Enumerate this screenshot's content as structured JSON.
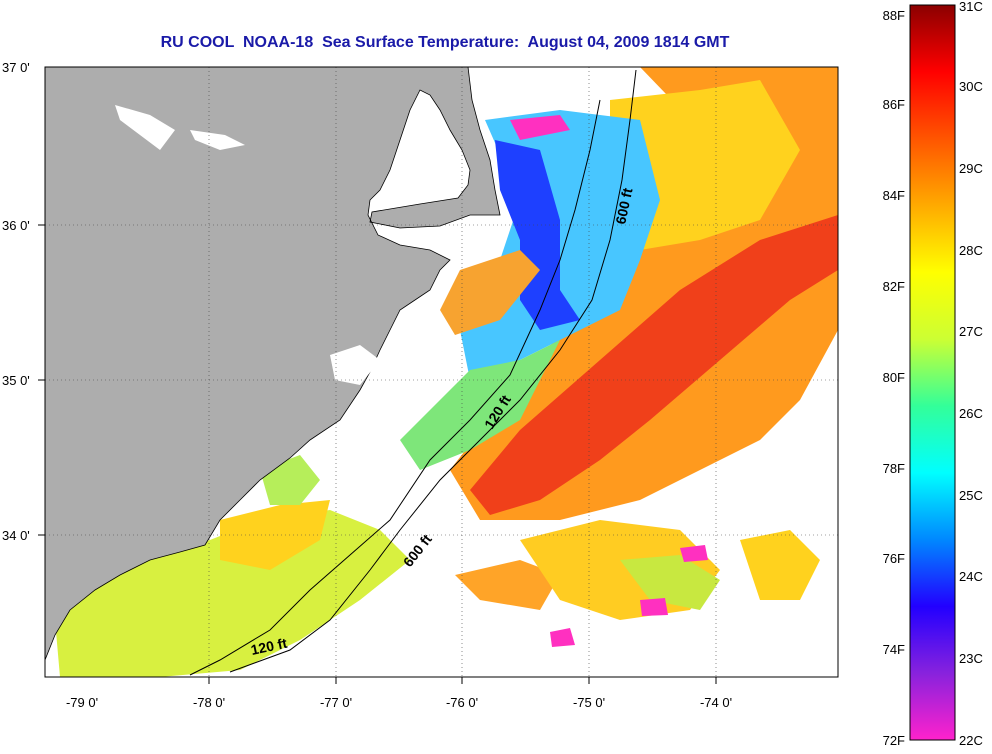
{
  "title": "RU COOL  NOAA-18  Sea Surface Temperature:  August 04, 2009 1814 GMT",
  "map": {
    "longitude_labels": [
      "-79 0'",
      "-78 0'",
      "-77 0'",
      "-76 0'",
      "-75 0'",
      "-74 0'"
    ],
    "latitude_labels": [
      "37 0'",
      "36 0'",
      "35 0'",
      "34 0'"
    ],
    "contour_labels": [
      "600 ft",
      "120 ft",
      "600 ft",
      "120 ft"
    ],
    "colors": {
      "land": "#adadad",
      "no_data": "#ffffff",
      "gulf_stream": "#ee3a10",
      "shelf_water": "#ffd200",
      "cold_water": "#1e40ff"
    }
  },
  "colorbar": {
    "fahrenheit_labels": [
      "88F",
      "86F",
      "84F",
      "82F",
      "80F",
      "78F",
      "76F",
      "74F",
      "72F"
    ],
    "celsius_labels": [
      "31C",
      "30C",
      "29C",
      "28C",
      "27C",
      "26C",
      "25C",
      "24C",
      "23C",
      "22C"
    ],
    "gradient_stops": [
      "#ff22cc",
      "#8822dd",
      "#2200ff",
      "#0088ff",
      "#00ffff",
      "#33ff99",
      "#ccff33",
      "#ffff00",
      "#ffaa00",
      "#ff5500",
      "#ff0000",
      "#8b0000"
    ]
  }
}
